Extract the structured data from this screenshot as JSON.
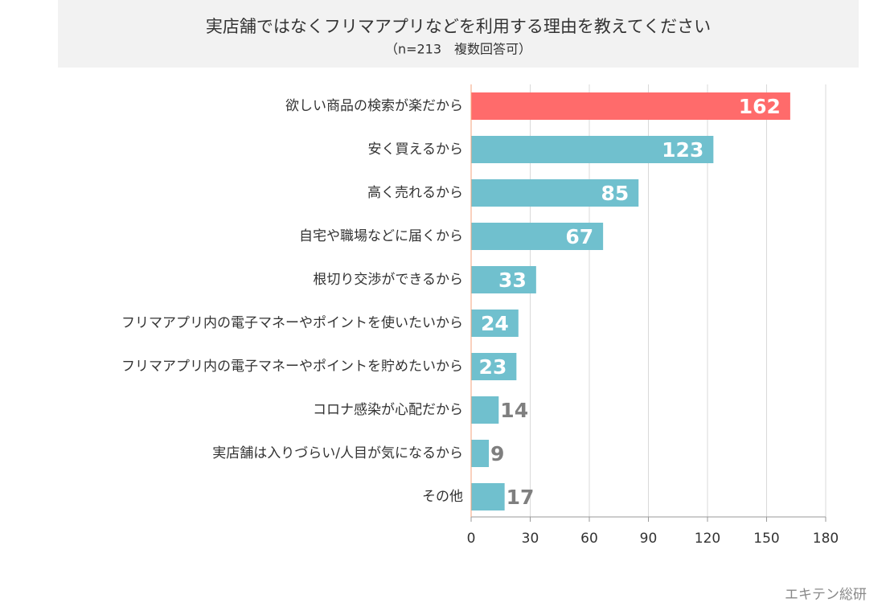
{
  "chart_data": {
    "type": "barh",
    "title": "実店舗ではなくフリマアプリなどを利用する理由を教えてください",
    "subtitle": "（n=213　複数回答可）",
    "source": "エキテン総研",
    "categories": [
      "欲しい商品の検索が楽だから",
      "安く買えるから",
      "高く売れるから",
      "自宅や職場などに届くから",
      "根切り交渉ができるから",
      "フリマアプリ内の電子マネーやポイントを使いたいから",
      "フリマアプリ内の電子マネーやポイントを貯めたいから",
      "コロナ感染が心配だから",
      "実店舗は入りづらい/人目が気になるから",
      "その他"
    ],
    "values": [
      162,
      123,
      85,
      67,
      33,
      24,
      23,
      14,
      9,
      17
    ],
    "colors": [
      "#ff6b6b",
      "#70c0ce",
      "#70c0ce",
      "#70c0ce",
      "#70c0ce",
      "#70c0ce",
      "#70c0ce",
      "#70c0ce",
      "#70c0ce",
      "#70c0ce"
    ],
    "xlim": [
      0,
      180
    ],
    "xticks": [
      0,
      30,
      60,
      90,
      120,
      150,
      180
    ],
    "grid": true
  }
}
